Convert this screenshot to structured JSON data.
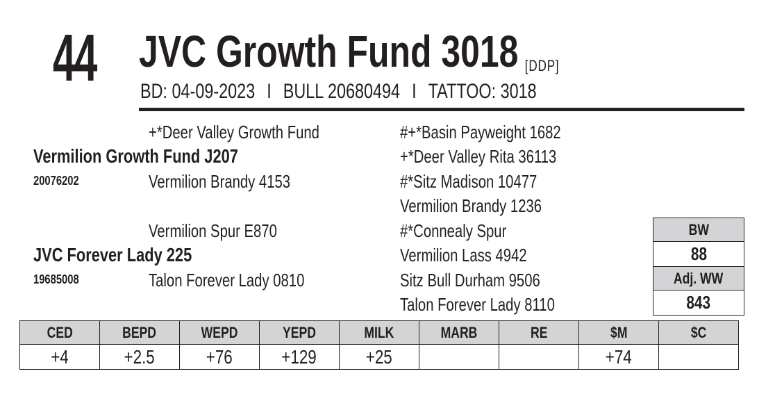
{
  "lot_number": "44",
  "title": "JVC Growth Fund 3018",
  "tag": "[DDP]",
  "info": {
    "bd": "BD: 04-09-2023",
    "sep1": "I",
    "bull": "BULL 20680494",
    "sep2": "I",
    "tattoo": "TATTOO: 3018"
  },
  "pedigree": {
    "sire": {
      "name": "Vermilion Growth Fund J207",
      "reg": "20076202",
      "sire": "+*Deer Valley Growth Fund",
      "dam": "Vermilion Brandy 4153",
      "ss": "#+*Basin Payweight 1682",
      "sd": "+*Deer Valley Rita 36113",
      "ds": "#*Sitz Madison 10477",
      "dd": "Vermilion Brandy 1236"
    },
    "dam": {
      "name": "JVC  Forever Lady 225",
      "reg": "19685008",
      "sire": "Vermilion Spur E870",
      "dam": "Talon Forever Lady 0810",
      "ss": "#*Connealy Spur",
      "sd": "Vermilion Lass 4942",
      "ds": "Sitz Bull Durham 9506",
      "dd": "Talon Forever Lady 8110"
    }
  },
  "weights": {
    "bw_label": "BW",
    "bw": "88",
    "adjww_label": "Adj. WW",
    "adjww": "843"
  },
  "epd": {
    "headers": [
      "CED",
      "BEPD",
      "WEPD",
      "YEPD",
      "MILK",
      "MARB",
      "RE",
      "$M",
      "$C"
    ],
    "values": [
      "+4",
      "+2.5",
      "+76",
      "+129",
      "+25",
      "",
      "",
      "+74",
      ""
    ]
  }
}
